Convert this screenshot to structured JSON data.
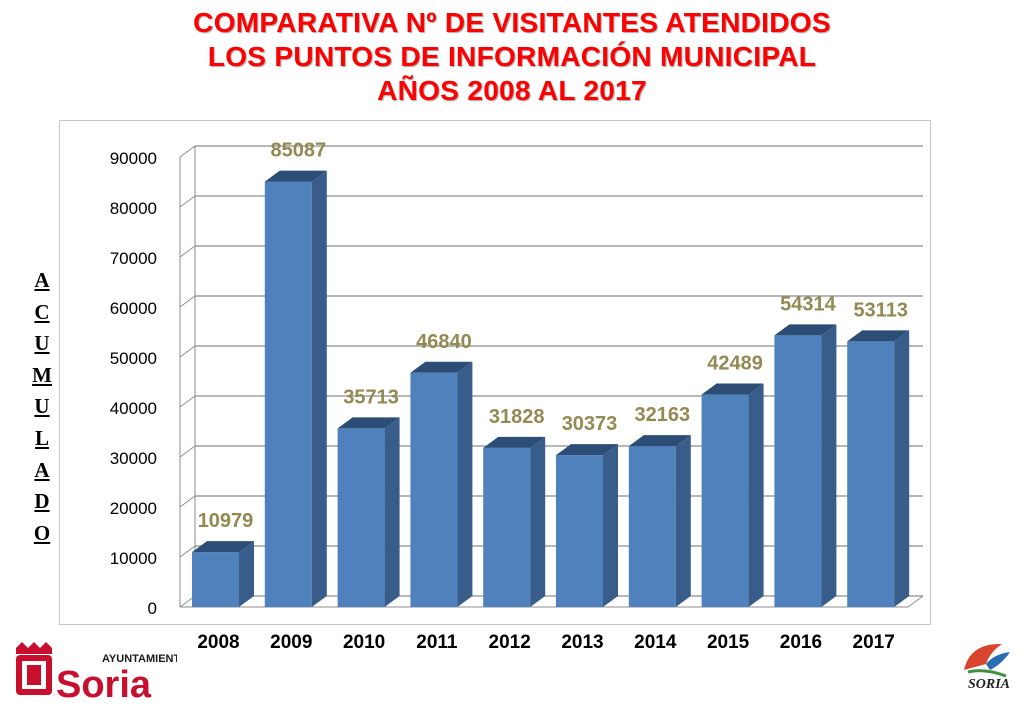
{
  "title_lines": [
    "COMPARATIVA Nº DE VISITANTES ATENDIDOS",
    "LOS PUNTOS DE INFORMACIÓN MUNICIPAL",
    "AÑOS 2008 AL 2017"
  ],
  "ylabel_letters": [
    "A",
    "C",
    "U",
    "M",
    "U",
    "L",
    "A",
    "D",
    "O"
  ],
  "colors": {
    "title": "#ff0000",
    "bar_front": "#4f81bd",
    "bar_side": "#385d8a",
    "bar_top": "#2c4d75",
    "data_label": "#938953"
  },
  "chart_data": {
    "type": "bar",
    "title": "COMPARATIVA Nº DE VISITANTES ATENDIDOS LOS PUNTOS DE INFORMACIÓN MUNICIPAL AÑOS 2008 AL 2017",
    "xlabel": "",
    "ylabel": "ACUMULADO",
    "categories": [
      "2008",
      "2009",
      "2010",
      "2011",
      "2012",
      "2013",
      "2014",
      "2015",
      "2016",
      "2017"
    ],
    "values": [
      10979,
      85087,
      35713,
      46840,
      31828,
      30373,
      32163,
      42489,
      54314,
      53113
    ],
    "ylim": [
      0,
      90000
    ],
    "yticks": [
      "0",
      "10000",
      "20000",
      "30000",
      "40000",
      "50000",
      "60000",
      "70000",
      "80000",
      "90000"
    ],
    "grid": true,
    "style": "3d-column"
  },
  "logo_left": {
    "line1": "AYUNTAMIENTO",
    "line2": "Soria",
    "icon": "coat-of-arms-icon"
  },
  "logo_right": {
    "text": "SORIA",
    "icon": "soria-brand-logo-icon"
  }
}
